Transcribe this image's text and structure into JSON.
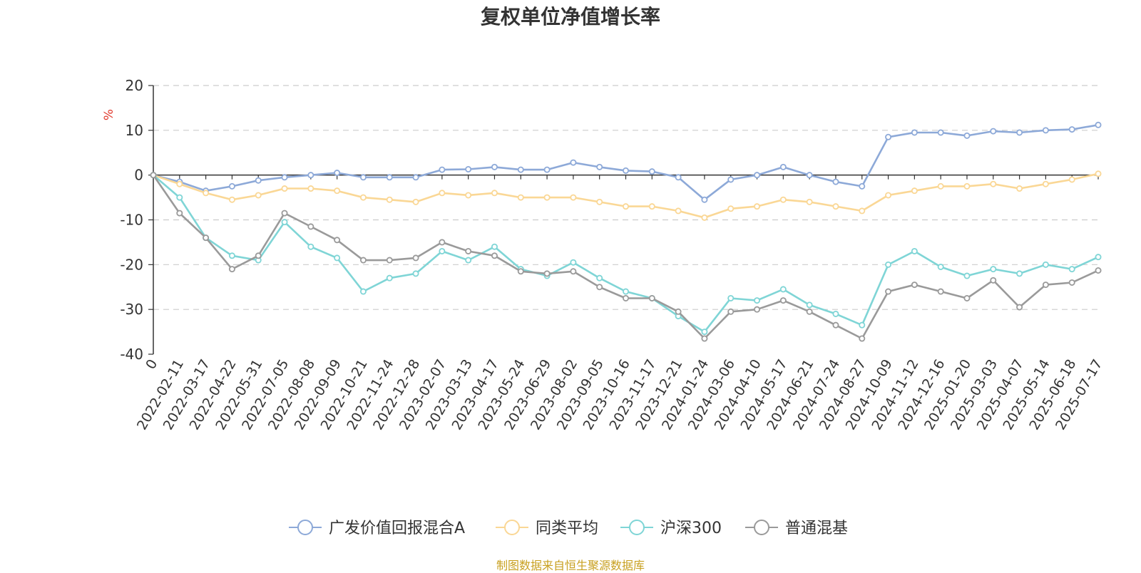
{
  "title": "复权单位净值增长率",
  "footer": "制图数据来自恒生聚源数据库",
  "chart_data": {
    "type": "line",
    "title": "复权单位净值增长率",
    "ylabel": "%",
    "xlabel": "",
    "ylim": [
      -40,
      20
    ],
    "yticks": [
      20,
      10,
      0,
      -10,
      -20,
      -30,
      -40
    ],
    "grid": true,
    "legend_position": "bottom-center",
    "categories": [
      "0",
      "2022-02-11",
      "2022-03-17",
      "2022-04-22",
      "2022-05-31",
      "2022-07-05",
      "2022-08-08",
      "2022-09-09",
      "2022-10-21",
      "2022-11-24",
      "2022-12-28",
      "2023-02-07",
      "2023-03-13",
      "2023-04-17",
      "2023-05-24",
      "2023-06-29",
      "2023-08-02",
      "2023-09-05",
      "2023-10-16",
      "2023-11-17",
      "2023-12-21",
      "2024-01-24",
      "2024-03-06",
      "2024-04-10",
      "2024-05-17",
      "2024-06-21",
      "2024-07-24",
      "2024-08-27",
      "2024-10-09",
      "2024-11-12",
      "2024-12-16",
      "2025-01-20",
      "2025-03-03",
      "2025-04-07",
      "2025-05-14",
      "2025-06-18",
      "2025-07-17"
    ],
    "series": [
      {
        "name": "广发价值回报混合A",
        "color": "#8da9d8",
        "values": [
          0,
          -1.5,
          -3.5,
          -2.5,
          -1.2,
          -0.5,
          0,
          0.5,
          -0.5,
          -0.5,
          -0.5,
          1.2,
          1.3,
          1.8,
          1.2,
          1.2,
          2.8,
          1.8,
          1.0,
          0.8,
          -0.5,
          -5.5,
          -1.0,
          0,
          1.8,
          0,
          -1.5,
          -2.5,
          8.5,
          9.5,
          9.5,
          8.8,
          9.8,
          9.5,
          10.0,
          10.2,
          11.2
        ]
      },
      {
        "name": "同类平均",
        "color": "#fad795",
        "values": [
          0,
          -2.0,
          -4.0,
          -5.5,
          -4.5,
          -3.0,
          -3.0,
          -3.5,
          -5.0,
          -5.5,
          -6.0,
          -4.0,
          -4.5,
          -4.0,
          -5.0,
          -5.0,
          -5.0,
          -6.0,
          -7.0,
          -7.0,
          -8.0,
          -9.5,
          -7.5,
          -7.0,
          -5.5,
          -6.0,
          -7.0,
          -8.0,
          -4.5,
          -3.5,
          -2.5,
          -2.5,
          -2.0,
          -3.0,
          -2.0,
          -1.0,
          0.3
        ]
      },
      {
        "name": "沪深300",
        "color": "#7fd5d6",
        "values": [
          0,
          -5.0,
          -14.0,
          -18.0,
          -19.0,
          -10.5,
          -16.0,
          -18.5,
          -26.0,
          -23.0,
          -22.0,
          -17.0,
          -19.0,
          -16.0,
          -21.0,
          -22.5,
          -19.5,
          -23.0,
          -26.0,
          -27.5,
          -31.5,
          -35.0,
          -27.5,
          -28.0,
          -25.5,
          -29.0,
          -31.0,
          -33.5,
          -20.0,
          -17.0,
          -20.5,
          -22.5,
          -21.0,
          -22.0,
          -20.0,
          -21.0,
          -18.3
        ]
      },
      {
        "name": "普通混基",
        "color": "#9a9a9a",
        "values": [
          0,
          -8.5,
          -14.0,
          -21.0,
          -18.0,
          -8.5,
          -11.5,
          -14.5,
          -19.0,
          -19.0,
          -18.5,
          -15.0,
          -17.0,
          -18.0,
          -21.5,
          -22.0,
          -21.5,
          -25.0,
          -27.5,
          -27.5,
          -30.5,
          -36.5,
          -30.5,
          -30.0,
          -28.0,
          -30.5,
          -33.5,
          -36.5,
          -26.0,
          -24.5,
          -26.0,
          -27.5,
          -23.5,
          -29.5,
          -24.5,
          -24.0,
          -21.3
        ]
      }
    ]
  }
}
